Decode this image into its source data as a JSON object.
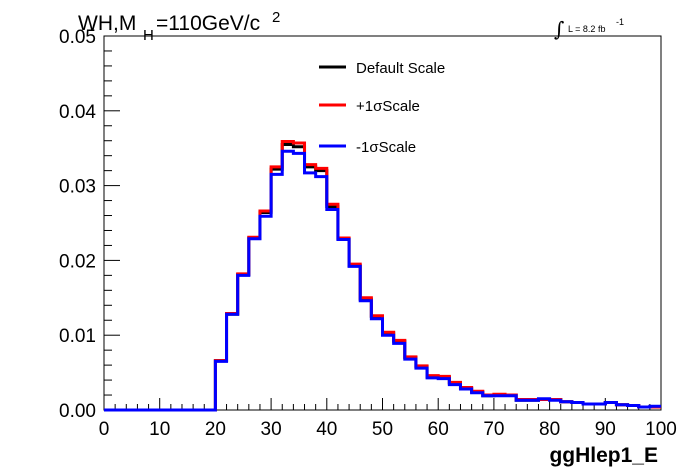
{
  "chart_data": {
    "type": "line",
    "title_main": "WH,M",
    "title_sub": "H",
    "title_rest": "=110GeV/c",
    "title_sup": "2",
    "lumi_label": "L = 8.2 fb",
    "lumi_sup": "-1",
    "integral_symbol": "∫",
    "xlabel": "ggHlep1_E",
    "xlim": [
      0,
      100
    ],
    "ylim": [
      0,
      0.05
    ],
    "x_ticks": [
      "0",
      "10",
      "20",
      "30",
      "40",
      "50",
      "60",
      "70",
      "80",
      "90",
      "100"
    ],
    "y_ticks": [
      "0.00",
      "0.01",
      "0.02",
      "0.03",
      "0.04",
      "0.05"
    ],
    "bin_edges": [
      0,
      2,
      4,
      6,
      8,
      10,
      12,
      14,
      16,
      18,
      20,
      22,
      24,
      26,
      28,
      30,
      32,
      34,
      36,
      38,
      40,
      42,
      44,
      46,
      48,
      50,
      52,
      54,
      56,
      58,
      60,
      62,
      64,
      66,
      68,
      70,
      72,
      74,
      76,
      78,
      80,
      82,
      84,
      86,
      88,
      90,
      92,
      94,
      96,
      98,
      100
    ],
    "series": [
      {
        "name": "Default Scale",
        "color": "#000000",
        "values": [
          0,
          0,
          0,
          0,
          0,
          0,
          0,
          0,
          0,
          0,
          0.0066,
          0.0128,
          0.0181,
          0.023,
          0.0264,
          0.0322,
          0.0355,
          0.0352,
          0.0325,
          0.032,
          0.0272,
          0.0229,
          0.0193,
          0.0148,
          0.0125,
          0.0103,
          0.0092,
          0.007,
          0.0058,
          0.0045,
          0.0044,
          0.0036,
          0.0029,
          0.0024,
          0.0019,
          0.002,
          0.002,
          0.0013,
          0.0013,
          0.0014,
          0.0014,
          0.0011,
          0.001,
          0.0008,
          0.0008,
          0.001,
          0.0007,
          0.0006,
          0.0004,
          0.0004
        ]
      },
      {
        "name": "+1σScale",
        "color": "#ff0000",
        "values": [
          0,
          0,
          0,
          0,
          0,
          0,
          0,
          0,
          0,
          0,
          0.0066,
          0.0129,
          0.0182,
          0.0231,
          0.0266,
          0.0325,
          0.0359,
          0.0357,
          0.0328,
          0.0323,
          0.0275,
          0.023,
          0.0195,
          0.015,
          0.0126,
          0.0104,
          0.0093,
          0.0071,
          0.0059,
          0.0046,
          0.0045,
          0.0037,
          0.003,
          0.0025,
          0.002,
          0.0021,
          0.002,
          0.0014,
          0.0014,
          0.0014,
          0.0014,
          0.0011,
          0.001,
          0.0008,
          0.0008,
          0.001,
          0.0007,
          0.0006,
          0.0004,
          0.0004
        ]
      },
      {
        "name": "-1σScale",
        "color": "#0000ff",
        "values": [
          0,
          0,
          0,
          0,
          0,
          0,
          0,
          0,
          0,
          0,
          0.0065,
          0.0128,
          0.018,
          0.0229,
          0.0259,
          0.0315,
          0.0346,
          0.0343,
          0.0317,
          0.0312,
          0.0268,
          0.0228,
          0.0192,
          0.0146,
          0.0122,
          0.01,
          0.0089,
          0.0068,
          0.0056,
          0.0043,
          0.0042,
          0.0034,
          0.0028,
          0.0023,
          0.0019,
          0.0019,
          0.0019,
          0.0013,
          0.0013,
          0.0015,
          0.0013,
          0.0011,
          0.001,
          0.0008,
          0.0008,
          0.001,
          0.0007,
          0.0006,
          0.0004,
          0.0005
        ]
      }
    ],
    "legend": "top-center"
  }
}
